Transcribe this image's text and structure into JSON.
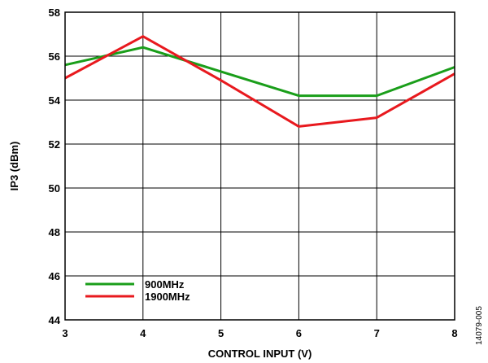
{
  "chart_data": {
    "type": "line",
    "xlabel": "CONTROL INPUT (V)",
    "ylabel": "IP3 (dBm)",
    "xlim": [
      3,
      8
    ],
    "ylim": [
      44,
      58
    ],
    "x_ticks": [
      3,
      4,
      5,
      6,
      7,
      8
    ],
    "y_ticks": [
      44,
      46,
      48,
      50,
      52,
      54,
      56,
      58
    ],
    "grid": true,
    "legend_position": "bottom-left",
    "x": [
      3,
      4,
      5,
      6,
      7,
      8
    ],
    "series": [
      {
        "name": "900MHz",
        "color": "#1a9e1a",
        "values": [
          55.6,
          56.4,
          55.3,
          54.2,
          54.2,
          55.5
        ]
      },
      {
        "name": "1900MHz",
        "color": "#e8191e",
        "values": [
          55.0,
          56.9,
          54.9,
          52.8,
          53.2,
          55.2
        ]
      }
    ]
  },
  "figure_id": "14079-005"
}
